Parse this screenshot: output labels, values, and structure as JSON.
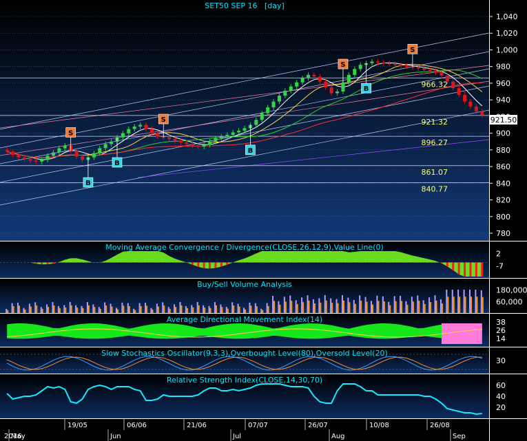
{
  "chart_data": {
    "type": "candlestick",
    "title": "SET50 SEP 16   [day]",
    "colors": {
      "background_top": "#000000",
      "background_bottom": "#123a78",
      "up_candle": "#34d34a",
      "down_candle": "#e01515",
      "grid": "#5a6b8a",
      "title": "#00e6ff",
      "axis_text": "#ffffff",
      "level_text": "#ffff66",
      "buy_marker": "#35d4e8",
      "sell_marker": "#f07a3a",
      "macd_up": "#7dff1f",
      "macd_down": "#ff1a1a",
      "volume_orange": "#ff9900",
      "volume_purple": "#b29dff",
      "adx_green": "#19ff19",
      "adx_pink": "#ff7ad9",
      "stoch_fast": "#3ca0ff",
      "stoch_slow": "#ff8a2a",
      "rsi_line": "#18e8ff"
    },
    "price_axis": {
      "ticks": [
        "1,040",
        "1,020",
        "1,000",
        "980",
        "960",
        "940",
        "920",
        "900",
        "880",
        "860",
        "840",
        "820",
        "800",
        "780"
      ],
      "ylim": [
        770,
        1050
      ]
    },
    "last_price_label": "921.50",
    "levels": [
      {
        "label": "966.32",
        "value": 966.32
      },
      {
        "label": "921.32",
        "value": 921.32
      },
      {
        "label": "896.27",
        "value": 896.27
      },
      {
        "label": "861.07",
        "value": 861.07
      },
      {
        "label": "840.77",
        "value": 840.77
      }
    ],
    "date_axis": {
      "day_labels": [
        "19/05",
        "06/06",
        "21/06",
        "07/07",
        "26/07",
        "10/08",
        "26/08"
      ],
      "month_labels": [
        "May",
        "Jun",
        "Jul",
        "Aug",
        "Sep"
      ],
      "year_label": "2016"
    },
    "closes": [
      878,
      874,
      871,
      869,
      867,
      866,
      868,
      873,
      877,
      882,
      885,
      879,
      872,
      868,
      871,
      876,
      882,
      887,
      890,
      895,
      900,
      905,
      908,
      910,
      905,
      900,
      896,
      895,
      893,
      891,
      889,
      887,
      885,
      884,
      886,
      890,
      894,
      896,
      898,
      901,
      903,
      906,
      910,
      916,
      924,
      931,
      938,
      945,
      951,
      956,
      961,
      966,
      970,
      968,
      962,
      955,
      948,
      950,
      961,
      970,
      977,
      982,
      984,
      986,
      985,
      984,
      983,
      982,
      981,
      980,
      979,
      978,
      976,
      975,
      973,
      969,
      962,
      954,
      946,
      938,
      932,
      926,
      921.5
    ],
    "signals": [
      {
        "type": "S",
        "index": 11
      },
      {
        "type": "B",
        "index": 14
      },
      {
        "type": "B",
        "index": 19
      },
      {
        "type": "S",
        "index": 27
      },
      {
        "type": "B",
        "index": 42
      },
      {
        "type": "S",
        "index": 58
      },
      {
        "type": "B",
        "index": 62
      },
      {
        "type": "S",
        "index": 70
      }
    ],
    "panels": [
      {
        "name": "macd",
        "title": "Moving Average Convergence / Divergence(CLOSE,26,12,9),Value Line(0)",
        "ticks": [
          "2",
          "-7"
        ]
      },
      {
        "name": "volume",
        "title": "Buy/Sell Volume Analysis",
        "ticks": [
          "180,000",
          "60,000"
        ]
      },
      {
        "name": "adx",
        "title": "Average Directional Movement Index(14)",
        "ticks": [
          "38",
          "26",
          "14"
        ]
      },
      {
        "name": "stochastic",
        "title": "Slow Stochastics Oscillator(9,3,3),Overbought Level(80),Oversold Level(20)",
        "ticks": [
          "30"
        ]
      },
      {
        "name": "rsi",
        "title": "Relative Strength Index(CLOSE,14,30,70)",
        "ticks": [
          "60",
          "40",
          "20"
        ]
      }
    ]
  }
}
